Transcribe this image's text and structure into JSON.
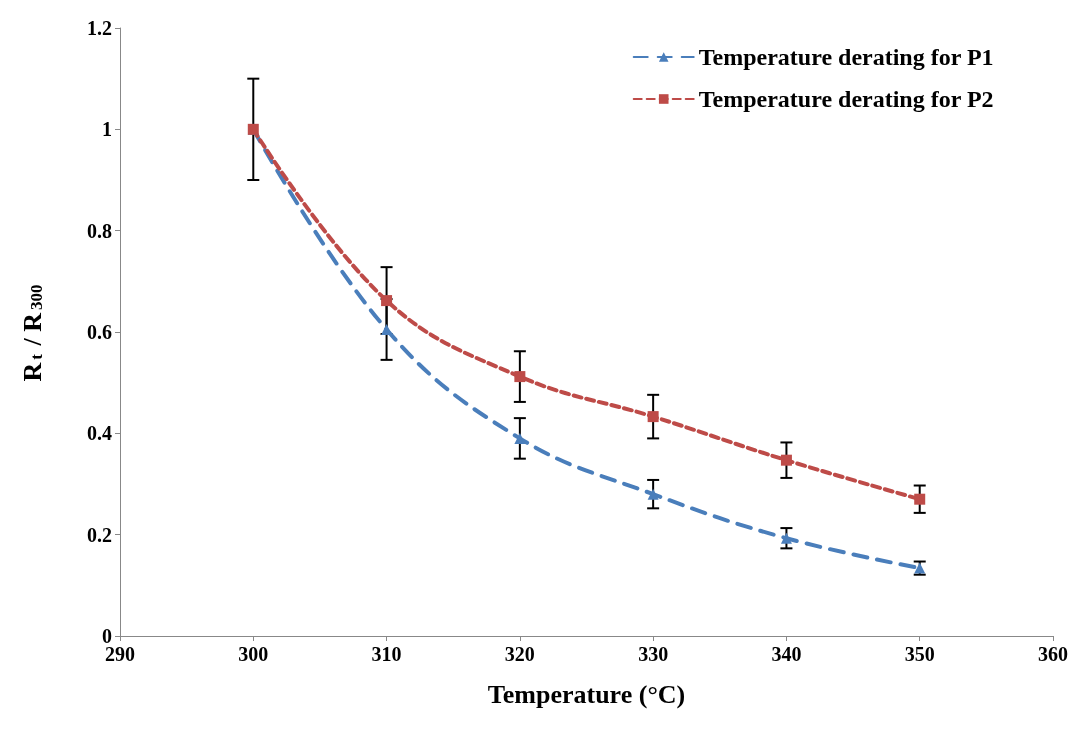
{
  "chart_data": {
    "type": "line",
    "xlabel": "Temperature (°C)",
    "ylabel": "R$_{t}$ / R$_{300}$",
    "x": [
      300,
      310,
      320,
      330,
      340,
      350
    ],
    "series": [
      {
        "name": "Temperature derating for P1",
        "color": "#4a7ebb",
        "marker": "triangle",
        "line_style": "dashed",
        "values": [
          1.0,
          0.605,
          0.39,
          0.28,
          0.193,
          0.134
        ],
        "errors": [
          null,
          0.06,
          0.04,
          0.028,
          0.02,
          0.013
        ]
      },
      {
        "name": "Temperature derating for P2",
        "color": "#be4b48",
        "marker": "square",
        "line_style": "dotted",
        "values": [
          1.0,
          0.662,
          0.512,
          0.433,
          0.347,
          0.27
        ],
        "errors": [
          0.1,
          0.066,
          0.05,
          0.043,
          0.035,
          0.027
        ]
      }
    ],
    "xlim": [
      290,
      360
    ],
    "xticks": [
      290,
      300,
      310,
      320,
      330,
      340,
      350,
      360
    ],
    "ylim": [
      0,
      1.2
    ],
    "yticks": [
      0,
      0.2,
      0.4,
      0.6,
      0.8,
      1,
      1.2
    ],
    "grid": false,
    "legend": "top right"
  }
}
